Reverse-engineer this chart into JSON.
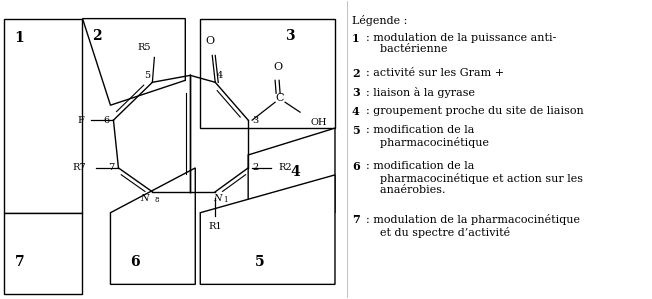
{
  "background_color": "#ffffff",
  "fig_width": 6.52,
  "fig_height": 2.99,
  "legend_title": "Légende :",
  "legend_items": [
    {
      "num": "1",
      "text": ": modulation de la puissance anti-\n    bactérienne"
    },
    {
      "num": "2",
      "text": ": activité sur les Gram +"
    },
    {
      "num": "3",
      "text": ": liaison à la gyrase"
    },
    {
      "num": "4",
      "text": ": groupement proche du site de liaison"
    },
    {
      "num": "5",
      "text": ": modification de la\n    pharmacocinétique"
    },
    {
      "num": "6",
      "text": ": modification de la\n    pharmacocinétique et action sur les\n    anaérobies."
    },
    {
      "num": "7",
      "text": ": modulation de la pharmacocinétique\n    et du spectre d’activité"
    }
  ]
}
